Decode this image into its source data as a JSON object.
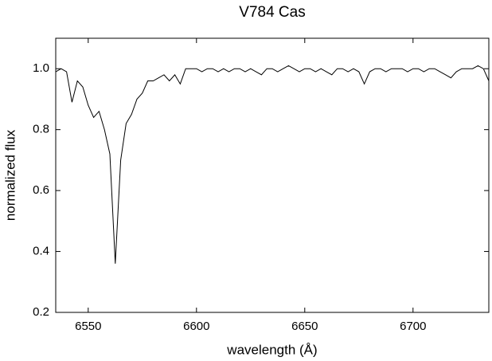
{
  "chart_data": {
    "type": "line",
    "title": "V784 Cas",
    "xlabel": "wavelength (Å)",
    "ylabel": "normalized flux",
    "x": [
      6535,
      6537.5,
      6540,
      6542.5,
      6545,
      6547.5,
      6550,
      6552.5,
      6555,
      6557.5,
      6560,
      6562.5,
      6565,
      6567.5,
      6570,
      6572.5,
      6575,
      6577.5,
      6580,
      6582.5,
      6585,
      6587.5,
      6590,
      6592.5,
      6595,
      6597.5,
      6600,
      6602.5,
      6605,
      6607.5,
      6610,
      6612.5,
      6615,
      6617.5,
      6620,
      6622.5,
      6625,
      6627.5,
      6630,
      6632.5,
      6635,
      6637.5,
      6640,
      6642.5,
      6645,
      6647.5,
      6650,
      6652.5,
      6655,
      6657.5,
      6660,
      6662.5,
      6665,
      6667.5,
      6670,
      6672.5,
      6675,
      6677.5,
      6680,
      6682.5,
      6685,
      6687.5,
      6690,
      6692.5,
      6695,
      6697.5,
      6700,
      6702.5,
      6705,
      6707.5,
      6710,
      6712.5,
      6715,
      6717.5,
      6720,
      6722.5,
      6725,
      6727.5,
      6730,
      6732.5,
      6735
    ],
    "values": [
      0.99,
      1.0,
      0.99,
      0.89,
      0.96,
      0.94,
      0.88,
      0.84,
      0.86,
      0.8,
      0.72,
      0.36,
      0.7,
      0.82,
      0.85,
      0.9,
      0.92,
      0.96,
      0.96,
      0.97,
      0.98,
      0.96,
      0.98,
      0.95,
      1.0,
      1.0,
      1.0,
      0.99,
      1.0,
      1.0,
      0.99,
      1.0,
      0.99,
      1.0,
      1.0,
      0.99,
      1.0,
      0.99,
      0.98,
      1.0,
      1.0,
      0.99,
      1.0,
      1.01,
      1.0,
      0.99,
      1.0,
      1.0,
      0.99,
      1.0,
      0.99,
      0.98,
      1.0,
      1.0,
      0.99,
      1.0,
      0.99,
      0.95,
      0.99,
      1.0,
      1.0,
      0.99,
      1.0,
      1.0,
      1.0,
      0.99,
      1.0,
      1.0,
      0.99,
      1.0,
      1.0,
      0.99,
      0.98,
      0.97,
      0.99,
      1.0,
      1.0,
      1.0,
      1.01,
      1.0,
      0.96
    ],
    "color": "#000000",
    "xlim": [
      6535,
      6735
    ],
    "xticks": [
      6550,
      6600,
      6650,
      6700
    ],
    "ylim": [
      0.2,
      1.1
    ],
    "yticks": [
      0.2,
      0.4,
      0.6,
      0.8,
      {
        "value": 1,
        "label": "1.0"
      }
    ],
    "grid": false
  }
}
